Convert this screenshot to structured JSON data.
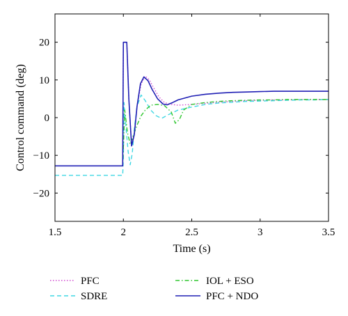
{
  "chart_data": {
    "type": "line",
    "xlabel": "Time (s)",
    "ylabel": "Control command (deg)",
    "xlim": [
      1.5,
      3.5
    ],
    "ylim": [
      -27.5,
      27.5
    ],
    "xticks": [
      1.5,
      2,
      2.5,
      3,
      3.5
    ],
    "xtick_labels": [
      "1.5",
      "2",
      "2.5",
      "3",
      "3.5"
    ],
    "yticks": [
      -20,
      -10,
      0,
      10,
      20
    ],
    "ytick_labels": [
      "−20",
      "−10",
      "0",
      "10",
      "20"
    ],
    "grid": false,
    "legend_position": "below plot",
    "series": [
      {
        "name": "PFC",
        "color": "#d24bd2",
        "dash": "dotted",
        "x": [
          1.5,
          1.995,
          2.0,
          2.01,
          2.025,
          2.04,
          2.06,
          2.08,
          2.1,
          2.13,
          2.16,
          2.19,
          2.22,
          2.26,
          2.3,
          2.35,
          2.4,
          2.5,
          2.6,
          2.7,
          2.8,
          2.9,
          3.0,
          3.1,
          3.2,
          3.3,
          3.4,
          3.5
        ],
        "y": [
          -12.8,
          -12.8,
          20.0,
          20.0,
          20.0,
          5.0,
          -7.0,
          -4.0,
          3.0,
          9.0,
          11.0,
          10.0,
          8.0,
          5.5,
          4.0,
          3.5,
          3.3,
          3.5,
          3.8,
          4.1,
          4.3,
          4.5,
          4.6,
          4.7,
          4.7,
          4.8,
          4.8,
          4.8
        ]
      },
      {
        "name": "SDRE",
        "color": "#3fd7e3",
        "dash": "dashed",
        "x": [
          1.5,
          1.995,
          2.0,
          2.005,
          2.02,
          2.035,
          2.05,
          2.065,
          2.08,
          2.1,
          2.13,
          2.16,
          2.2,
          2.24,
          2.28,
          2.33,
          2.4,
          2.5,
          2.6,
          2.7,
          2.8,
          2.9,
          3.0,
          3.1,
          3.2,
          3.3,
          3.4,
          3.5
        ],
        "y": [
          -15.3,
          -15.3,
          -11.0,
          4.0,
          -3.0,
          -9.0,
          -12.5,
          -9.5,
          -3.0,
          3.0,
          6.0,
          4.5,
          2.0,
          0.5,
          -0.2,
          0.8,
          2.0,
          2.8,
          3.5,
          3.9,
          4.1,
          4.3,
          4.4,
          4.5,
          4.6,
          4.7,
          4.7,
          4.8
        ]
      },
      {
        "name": "IOL + ESO",
        "color": "#2ec62e",
        "dash": "dashdot",
        "x": [
          1.5,
          1.995,
          2.0,
          2.01,
          2.03,
          2.05,
          2.07,
          2.1,
          2.13,
          2.16,
          2.2,
          2.25,
          2.3,
          2.35,
          2.38,
          2.41,
          2.44,
          2.5,
          2.6,
          2.7,
          2.8,
          2.9,
          3.0,
          3.1,
          3.2,
          3.3,
          3.4,
          3.5
        ],
        "y": [
          -12.8,
          -12.8,
          -8.0,
          2.0,
          -4.0,
          -7.0,
          -5.0,
          -2.0,
          0.5,
          2.0,
          3.3,
          3.5,
          3.2,
          1.5,
          -1.5,
          -0.5,
          2.0,
          3.5,
          4.0,
          4.3,
          4.5,
          4.6,
          4.7,
          4.7,
          4.8,
          4.8,
          4.8,
          4.8
        ]
      },
      {
        "name": "PFC + NDO",
        "color": "#1f1fb4",
        "dash": "solid",
        "x": [
          1.5,
          1.995,
          2.0,
          2.01,
          2.025,
          2.04,
          2.06,
          2.08,
          2.1,
          2.125,
          2.15,
          2.18,
          2.21,
          2.25,
          2.29,
          2.32,
          2.36,
          2.4,
          2.5,
          2.6,
          2.7,
          2.8,
          2.9,
          3.0,
          3.1,
          3.2,
          3.3,
          3.4,
          3.5
        ],
        "y": [
          -12.8,
          -12.8,
          20.0,
          20.0,
          20.0,
          5.0,
          -7.5,
          -4.5,
          3.0,
          9.0,
          10.8,
          9.8,
          7.5,
          5.0,
          3.6,
          3.4,
          4.0,
          4.7,
          5.7,
          6.2,
          6.5,
          6.7,
          6.8,
          6.9,
          7.0,
          7.0,
          7.0,
          7.0,
          7.0
        ]
      }
    ]
  }
}
